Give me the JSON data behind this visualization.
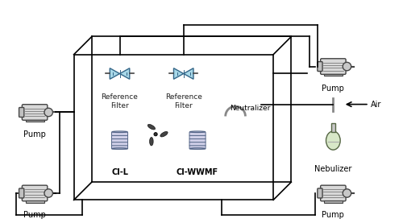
{
  "title": "",
  "bg_color": "#ffffff",
  "box_color": "#000000",
  "line_color": "#000000",
  "pump_color_outer": "#e8e8e8",
  "pump_color_inner": "#555555",
  "filter_color": "#a8d8e8",
  "tank_color": "#d0d0e8",
  "nebulizer_color": "#d8e8c8",
  "labels": {
    "pump_tl": "Pump",
    "pump_bl": "Pump",
    "pump_tr": "Pump",
    "pump_br": "Pump",
    "ref_filter_l": "Reference\nFilter",
    "ref_filter_r": "Reference\nFilter",
    "ci_l": "CI-L",
    "ci_wwmf": "CI-WWMF",
    "neutralizer": "Neutralizer",
    "nebulizer": "Nebulizer",
    "air": "Air"
  },
  "figsize": [
    5.0,
    2.77
  ],
  "dpi": 100
}
